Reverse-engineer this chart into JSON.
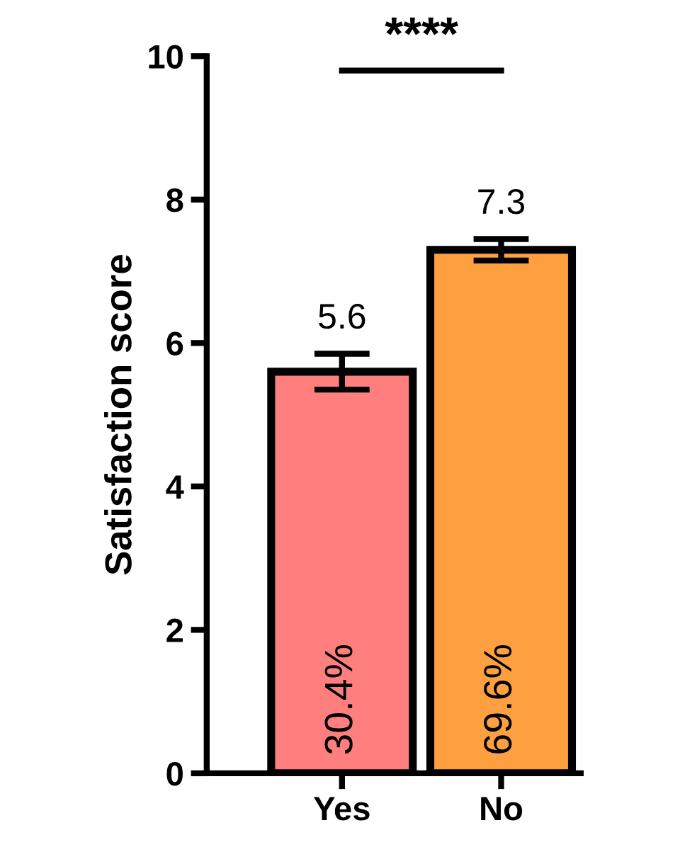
{
  "chart_data": {
    "type": "bar",
    "ylabel": "Satisfaction score",
    "categories": [
      "Yes",
      "No"
    ],
    "values": [
      5.6,
      7.3
    ],
    "colors": [
      "#ff7f7f",
      "#ffa040"
    ],
    "errors": [
      0.25,
      0.15
    ],
    "data_labels": true,
    "ylim": [
      0,
      10
    ],
    "yticks": [
      0,
      2,
      4,
      6,
      8,
      10
    ],
    "grid": false,
    "annotations": [
      "30.4%",
      "69.6%",
      "****"
    ]
  }
}
